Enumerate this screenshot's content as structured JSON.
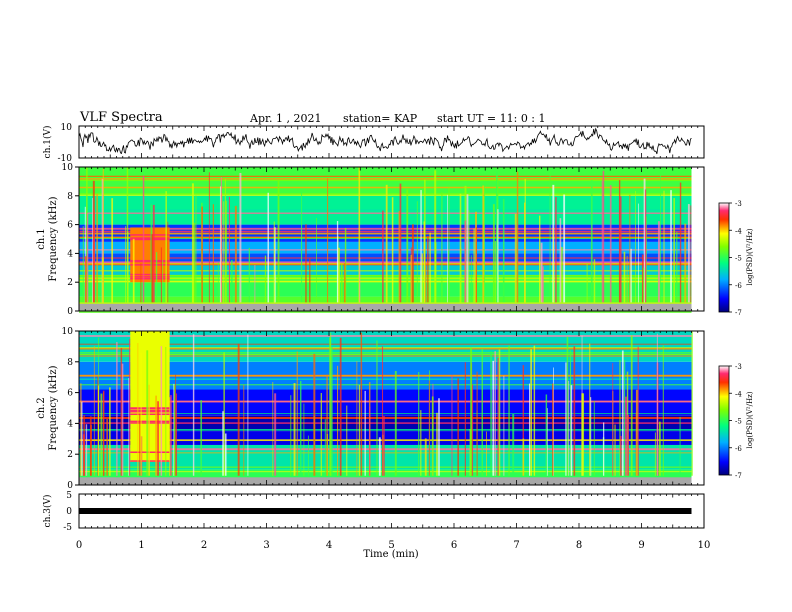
{
  "header": {
    "title": "VLF Spectra",
    "date": "Apr. 1 , 2021",
    "station": "station= KAP",
    "start_ut": "start  UT =  11: 0  : 1"
  },
  "chart_data": [
    {
      "type": "line",
      "panel": "ch1-waveform",
      "ylabel": "ch.1(V)",
      "ylim": [
        -10,
        10
      ],
      "yticks": [
        "10",
        "-10"
      ],
      "xlim": [
        0,
        10
      ],
      "color": "#000000",
      "note_series": "noisy waveform roughly between -6 and 7 V"
    },
    {
      "type": "heatmap",
      "panel": "ch1-spectrogram",
      "ylabel": "ch.1\nFrequency (kHz)",
      "ylabel_line1": "ch.1",
      "ylabel_line2": "Frequency (kHz)",
      "ylim": [
        0,
        10
      ],
      "yticks": [
        "0",
        "2",
        "4",
        "6",
        "8",
        "10"
      ],
      "xlim": [
        0,
        10
      ],
      "colorbar": {
        "label": "log(PSD)(V²/Hz)",
        "ticks": [
          "-3",
          "-4",
          "-5",
          "-6",
          "-7"
        ],
        "range": [
          -7,
          -3
        ]
      },
      "bands": [
        {
          "f_from": 0,
          "f_to": 1,
          "level": -4.8
        },
        {
          "f_from": 1,
          "f_to": 2.5,
          "level": -5.0
        },
        {
          "f_from": 2.5,
          "f_to": 3.3,
          "level": -5.6
        },
        {
          "f_from": 3.3,
          "f_to": 4.0,
          "level": -6.2
        },
        {
          "f_from": 4.0,
          "f_to": 4.8,
          "level": -5.8
        },
        {
          "f_from": 4.8,
          "f_to": 6.0,
          "level": -6.3
        },
        {
          "f_from": 6.0,
          "f_to": 8.0,
          "level": -5.3
        },
        {
          "f_from": 8.0,
          "f_to": 10,
          "level": -4.9
        }
      ],
      "burst": {
        "t_from": 0.82,
        "t_to": 1.45,
        "f_from": 2.0,
        "f_to": 5.8,
        "level": -3.8
      }
    },
    {
      "type": "heatmap",
      "panel": "ch2-spectrogram",
      "ylabel": "ch.2\nFrequency (kHz)",
      "ylabel_line1": "ch.2",
      "ylabel_line2": "Frequency (kHz)",
      "ylim": [
        0,
        10
      ],
      "yticks": [
        "0",
        "2",
        "4",
        "6",
        "8",
        "10"
      ],
      "xlim": [
        0,
        10
      ],
      "colorbar": {
        "label": "log(PSD)(V²/Hz)",
        "ticks": [
          "-3",
          "-4",
          "-5",
          "-6",
          "-7"
        ],
        "range": [
          -7,
          -3
        ]
      },
      "bands": [
        {
          "f_from": 0,
          "f_to": 1,
          "level": -5.0
        },
        {
          "f_from": 1,
          "f_to": 2.6,
          "level": -5.4
        },
        {
          "f_from": 2.6,
          "f_to": 3.5,
          "level": -6.6
        },
        {
          "f_from": 3.5,
          "f_to": 4.5,
          "level": -6.8
        },
        {
          "f_from": 4.5,
          "f_to": 6.2,
          "level": -6.5
        },
        {
          "f_from": 6.2,
          "f_to": 8.0,
          "level": -6.0
        },
        {
          "f_from": 8.0,
          "f_to": 10,
          "level": -5.5
        }
      ],
      "burst": {
        "t_from": 0.82,
        "t_to": 1.45,
        "f_from": 1.5,
        "f_to": 10,
        "level": -4.2
      }
    },
    {
      "type": "line",
      "panel": "ch3-waveform",
      "ylabel": "ch.3(V)",
      "ylim": [
        -5,
        5
      ],
      "yticks": [
        "5",
        "0",
        "-5"
      ],
      "xlim": [
        0,
        10
      ],
      "xlabel": "Time  (min)",
      "xticks": [
        "0",
        "1",
        "2",
        "3",
        "4",
        "5",
        "6",
        "7",
        "8",
        "9",
        "10"
      ],
      "series": [
        {
          "x": [
            0,
            9.8
          ],
          "y": [
            0,
            0
          ]
        }
      ],
      "color": "#000000"
    }
  ]
}
